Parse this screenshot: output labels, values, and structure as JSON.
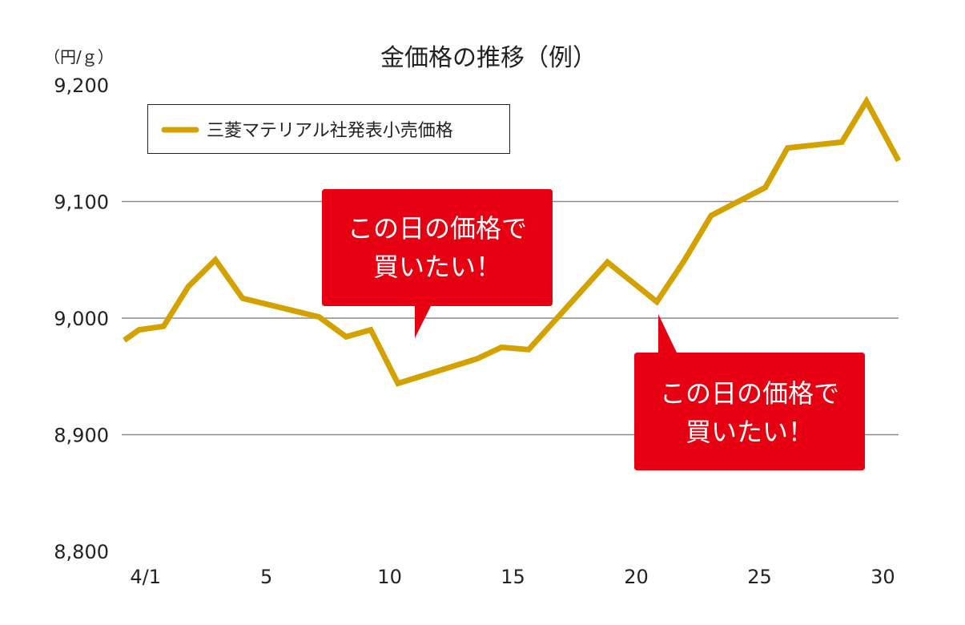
{
  "chart_data": {
    "type": "line",
    "title": "金価格の推移（例）",
    "ylabel": "（円/ｇ）",
    "xlabel": "",
    "ylim": [
      8800,
      9200
    ],
    "xlim": [
      -0.8,
      30.7
    ],
    "grid": true,
    "yticks": [
      {
        "value": 9200,
        "label": "9,200"
      },
      {
        "value": 9100,
        "label": "9,100"
      },
      {
        "value": 9000,
        "label": "9,000"
      },
      {
        "value": 8900,
        "label": "8,900"
      },
      {
        "value": 8800,
        "label": "8,800"
      }
    ],
    "gridlines": [
      9100,
      9000,
      8900
    ],
    "xticks": [
      {
        "value": 0.1,
        "label": "4/1"
      },
      {
        "value": 5,
        "label": "5"
      },
      {
        "value": 10,
        "label": "10"
      },
      {
        "value": 15,
        "label": "15"
      },
      {
        "value": 20,
        "label": "20"
      },
      {
        "value": 25,
        "label": "25"
      },
      {
        "value": 30,
        "label": "30"
      }
    ],
    "legend": {
      "position": "top-left",
      "entries": [
        "三菱マテリアル社発表小売価格"
      ]
    },
    "series": [
      {
        "name": "三菱マテリアル社発表小売価格",
        "color": "#D4A200",
        "x": [
          -0.7,
          -0.1,
          0.9,
          1.9,
          3.0,
          4.1,
          7.2,
          8.3,
          9.3,
          10.4,
          13.6,
          14.6,
          15.7,
          18.9,
          20.9,
          22.0,
          23.1,
          25.3,
          26.2,
          28.4,
          29.4,
          30.7
        ],
        "y": [
          8981,
          8990,
          8993,
          9027,
          9050,
          9017,
          9001,
          8984,
          8990,
          8944,
          8965,
          8975,
          8973,
          9048,
          9014,
          9049,
          9088,
          9112,
          9146,
          9151,
          9186,
          9135
        ]
      }
    ],
    "annotations": [
      {
        "lines": [
          "この日の価格で",
          "買いたい！"
        ],
        "color": "#E60012",
        "target_x": 10.4,
        "target_y": 8944
      },
      {
        "lines": [
          "この日の価格で",
          "買いたい！"
        ],
        "color": "#E60012",
        "target_x": 20.9,
        "target_y": 9014
      }
    ]
  }
}
